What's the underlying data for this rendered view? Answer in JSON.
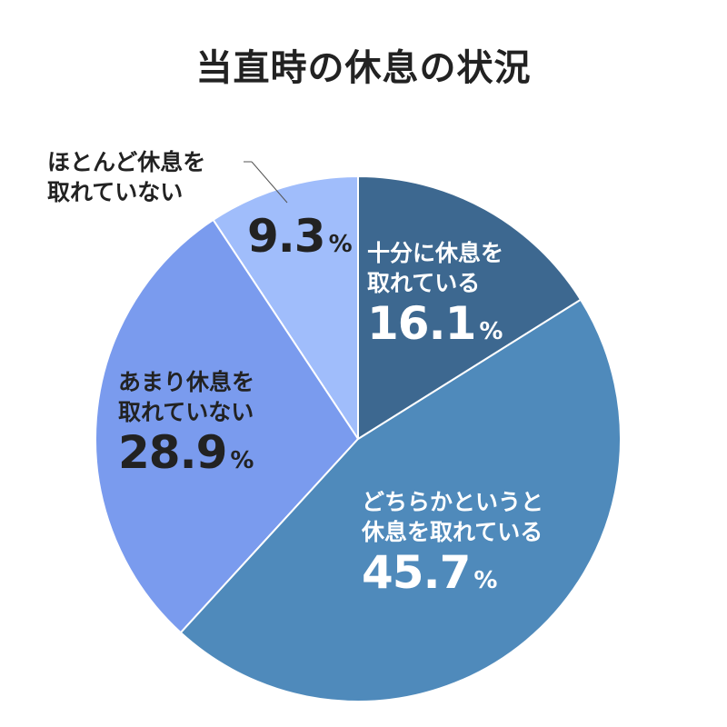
{
  "chart_data": {
    "type": "pie",
    "title": "当直時の休息の状況",
    "start": "top",
    "direction": "clockwise",
    "slices": [
      {
        "label_lines": [
          "十分に休息を",
          "取れている"
        ],
        "value": 16.1,
        "display": "16.1",
        "color": "#3d6890"
      },
      {
        "label_lines": [
          "どちらかというと",
          "休息を取れている"
        ],
        "value": 45.7,
        "display": "45.7",
        "color": "#4f8abb"
      },
      {
        "label_lines": [
          "あまり休息を",
          "取れていない"
        ],
        "value": 28.9,
        "display": "28.9",
        "color": "#7a9bee"
      },
      {
        "label_lines": [
          "ほとんど休息を",
          "取れていない"
        ],
        "value": 9.3,
        "display": "9.3",
        "color": "#a0bdfb"
      }
    ],
    "unit": "%"
  }
}
